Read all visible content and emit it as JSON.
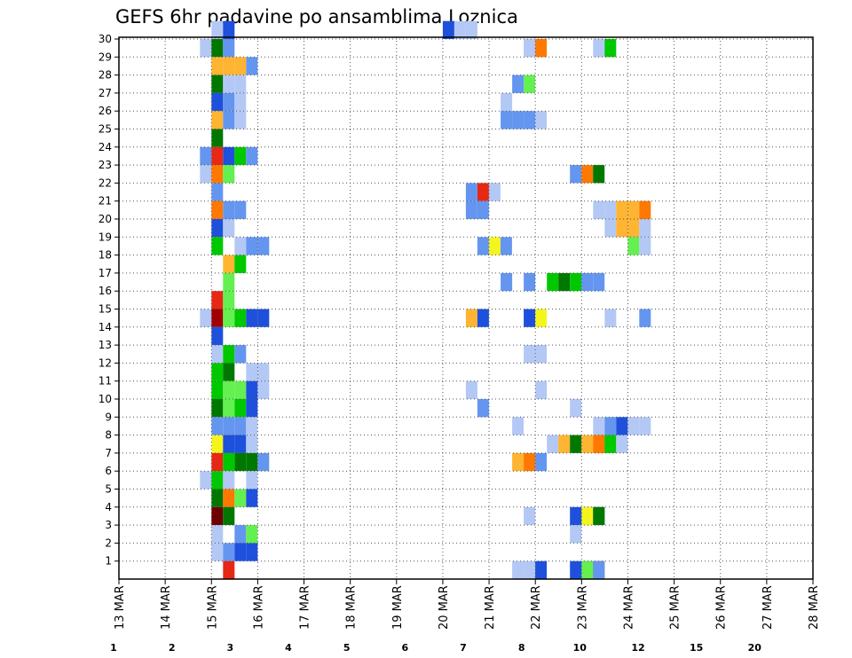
{
  "chart_data": {
    "type": "heatmap",
    "title": "GEFS 6hr padavine po ansamblima Loznica",
    "xlabel": "",
    "ylabel": "",
    "x_tick_labels": [
      "13 MAR",
      "14 MAR",
      "15 MAR",
      "16 MAR",
      "17 MAR",
      "18 MAR",
      "19 MAR",
      "20 MAR",
      "21 MAR",
      "22 MAR",
      "23 MAR",
      "24 MAR",
      "25 MAR",
      "26 MAR",
      "27 MAR",
      "28 MAR"
    ],
    "y_tick_labels": [
      "1",
      "2",
      "3",
      "4",
      "5",
      "6",
      "7",
      "8",
      "9",
      "10",
      "11",
      "12",
      "13",
      "14",
      "15",
      "16",
      "17",
      "18",
      "19",
      "20",
      "21",
      "22",
      "23",
      "24",
      "25",
      "26",
      "27",
      "28",
      "29",
      "30"
    ],
    "grid": true,
    "legend": {
      "placement": "bottom",
      "tick_labels": [
        "1",
        "2",
        "3",
        "4",
        "5",
        "6",
        "7",
        "8",
        "10",
        "12",
        "15",
        "20"
      ],
      "colors": [
        "#b4c8f5",
        "#6496f0",
        "#1e50dc",
        "#64f050",
        "#00c800",
        "#007800",
        "#f5f51e",
        "#ffb432",
        "#ff7800",
        "#e62814",
        "#a00000",
        "#6e0000"
      ]
    },
    "note_value_code": "cell value is color class: 1=light blue ... 12=darkest red",
    "cells": [
      {
        "day": "15 MAR",
        "member": 30,
        "v": 1
      },
      {
        "day": "15 MAR",
        "member": 30,
        "v": 3,
        "o": 1
      },
      {
        "day": "15 MAR",
        "member": 29,
        "v": 1,
        "o": -1
      },
      {
        "day": "15 MAR",
        "member": 29,
        "v": 6
      },
      {
        "day": "15 MAR",
        "member": 29,
        "v": 2,
        "o": 1
      },
      {
        "day": "15 MAR",
        "member": 28,
        "v": 8
      },
      {
        "day": "15 MAR",
        "member": 28,
        "v": 8,
        "o": 1
      },
      {
        "day": "15 MAR",
        "member": 28,
        "v": 8,
        "o": 2
      },
      {
        "day": "15 MAR",
        "member": 28,
        "v": 2,
        "o": 3
      },
      {
        "day": "15 MAR",
        "member": 27,
        "v": 6
      },
      {
        "day": "15 MAR",
        "member": 27,
        "v": 1,
        "o": 1
      },
      {
        "day": "15 MAR",
        "member": 27,
        "v": 1,
        "o": 2
      },
      {
        "day": "15 MAR",
        "member": 26,
        "v": 3
      },
      {
        "day": "15 MAR",
        "member": 26,
        "v": 2,
        "o": 1
      },
      {
        "day": "15 MAR",
        "member": 26,
        "v": 1,
        "o": 2
      },
      {
        "day": "15 MAR",
        "member": 25,
        "v": 8
      },
      {
        "day": "15 MAR",
        "member": 25,
        "v": 2,
        "o": 1
      },
      {
        "day": "15 MAR",
        "member": 25,
        "v": 1,
        "o": 2
      },
      {
        "day": "15 MAR",
        "member": 24,
        "v": 6
      },
      {
        "day": "15 MAR",
        "member": 23,
        "v": 2,
        "o": -1
      },
      {
        "day": "15 MAR",
        "member": 23,
        "v": 10
      },
      {
        "day": "15 MAR",
        "member": 23,
        "v": 3,
        "o": 1
      },
      {
        "day": "15 MAR",
        "member": 23,
        "v": 5,
        "o": 2
      },
      {
        "day": "15 MAR",
        "member": 23,
        "v": 2,
        "o": 3
      },
      {
        "day": "15 MAR",
        "member": 22,
        "v": 1,
        "o": -1
      },
      {
        "day": "15 MAR",
        "member": 22,
        "v": 9
      },
      {
        "day": "15 MAR",
        "member": 22,
        "v": 4,
        "o": 1
      },
      {
        "day": "15 MAR",
        "member": 21,
        "v": 2
      },
      {
        "day": "15 MAR",
        "member": 20,
        "v": 9
      },
      {
        "day": "15 MAR",
        "member": 20,
        "v": 2,
        "o": 1
      },
      {
        "day": "15 MAR",
        "member": 20,
        "v": 2,
        "o": 2
      },
      {
        "day": "15 MAR",
        "member": 19,
        "v": 3
      },
      {
        "day": "15 MAR",
        "member": 19,
        "v": 1,
        "o": 1
      },
      {
        "day": "15 MAR",
        "member": 18,
        "v": 5
      },
      {
        "day": "15 MAR",
        "member": 18,
        "v": 1,
        "o": 2
      },
      {
        "day": "15 MAR",
        "member": 18,
        "v": 2,
        "o": 3
      },
      {
        "day": "15 MAR",
        "member": 18,
        "v": 2,
        "o": 4
      },
      {
        "day": "15 MAR",
        "member": 17,
        "v": 8,
        "o": 1
      },
      {
        "day": "15 MAR",
        "member": 17,
        "v": 5,
        "o": 2
      },
      {
        "day": "15 MAR",
        "member": 16,
        "v": 4,
        "o": 1
      },
      {
        "day": "15 MAR",
        "member": 15,
        "v": 10
      },
      {
        "day": "15 MAR",
        "member": 15,
        "v": 4,
        "o": 1
      },
      {
        "day": "15 MAR",
        "member": 14,
        "v": 1,
        "o": -1
      },
      {
        "day": "15 MAR",
        "member": 14,
        "v": 11
      },
      {
        "day": "15 MAR",
        "member": 14,
        "v": 4,
        "o": 1
      },
      {
        "day": "15 MAR",
        "member": 14,
        "v": 5,
        "o": 2
      },
      {
        "day": "15 MAR",
        "member": 14,
        "v": 3,
        "o": 3
      },
      {
        "day": "15 MAR",
        "member": 14,
        "v": 3,
        "o": 4
      },
      {
        "day": "15 MAR",
        "member": 13,
        "v": 3
      },
      {
        "day": "15 MAR",
        "member": 12,
        "v": 1
      },
      {
        "day": "15 MAR",
        "member": 12,
        "v": 5,
        "o": 1
      },
      {
        "day": "15 MAR",
        "member": 12,
        "v": 2,
        "o": 2
      },
      {
        "day": "15 MAR",
        "member": 11,
        "v": 5
      },
      {
        "day": "15 MAR",
        "member": 11,
        "v": 6,
        "o": 1
      },
      {
        "day": "15 MAR",
        "member": 11,
        "v": 1,
        "o": 3
      },
      {
        "day": "15 MAR",
        "member": 11,
        "v": 1,
        "o": 4
      },
      {
        "day": "15 MAR",
        "member": 10,
        "v": 5
      },
      {
        "day": "15 MAR",
        "member": 10,
        "v": 4,
        "o": 1
      },
      {
        "day": "15 MAR",
        "member": 10,
        "v": 4,
        "o": 2
      },
      {
        "day": "15 MAR",
        "member": 10,
        "v": 3,
        "o": 3
      },
      {
        "day": "15 MAR",
        "member": 10,
        "v": 1,
        "o": 4
      },
      {
        "day": "15 MAR",
        "member": 9,
        "v": 6
      },
      {
        "day": "15 MAR",
        "member": 9,
        "v": 4,
        "o": 1
      },
      {
        "day": "15 MAR",
        "member": 9,
        "v": 5,
        "o": 2
      },
      {
        "day": "15 MAR",
        "member": 9,
        "v": 3,
        "o": 3
      },
      {
        "day": "15 MAR",
        "member": 8,
        "v": 2
      },
      {
        "day": "15 MAR",
        "member": 8,
        "v": 2,
        "o": 1
      },
      {
        "day": "15 MAR",
        "member": 8,
        "v": 2,
        "o": 2
      },
      {
        "day": "15 MAR",
        "member": 8,
        "v": 1,
        "o": 3
      },
      {
        "day": "15 MAR",
        "member": 7,
        "v": 7
      },
      {
        "day": "15 MAR",
        "member": 7,
        "v": 3,
        "o": 1
      },
      {
        "day": "15 MAR",
        "member": 7,
        "v": 3,
        "o": 2
      },
      {
        "day": "15 MAR",
        "member": 7,
        "v": 1,
        "o": 3
      },
      {
        "day": "15 MAR",
        "member": 6,
        "v": 10
      },
      {
        "day": "15 MAR",
        "member": 6,
        "v": 5,
        "o": 1
      },
      {
        "day": "15 MAR",
        "member": 6,
        "v": 6,
        "o": 2
      },
      {
        "day": "15 MAR",
        "member": 6,
        "v": 6,
        "o": 3
      },
      {
        "day": "15 MAR",
        "member": 6,
        "v": 2,
        "o": 4
      },
      {
        "day": "15 MAR",
        "member": 5,
        "v": 1,
        "o": -1
      },
      {
        "day": "15 MAR",
        "member": 5,
        "v": 5
      },
      {
        "day": "15 MAR",
        "member": 5,
        "v": 1,
        "o": 1
      },
      {
        "day": "15 MAR",
        "member": 5,
        "v": 1,
        "o": 3
      },
      {
        "day": "15 MAR",
        "member": 4,
        "v": 6
      },
      {
        "day": "15 MAR",
        "member": 4,
        "v": 9,
        "o": 1
      },
      {
        "day": "15 MAR",
        "member": 4,
        "v": 4,
        "o": 2
      },
      {
        "day": "15 MAR",
        "member": 4,
        "v": 3,
        "o": 3
      },
      {
        "day": "15 MAR",
        "member": 3,
        "v": 12
      },
      {
        "day": "15 MAR",
        "member": 3,
        "v": 6,
        "o": 1
      },
      {
        "day": "15 MAR",
        "member": 2,
        "v": 1
      },
      {
        "day": "15 MAR",
        "member": 2,
        "v": 2,
        "o": 2
      },
      {
        "day": "15 MAR",
        "member": 2,
        "v": 4,
        "o": 3
      },
      {
        "day": "15 MAR",
        "member": 1,
        "v": 1
      },
      {
        "day": "15 MAR",
        "member": 1,
        "v": 2,
        "o": 1
      },
      {
        "day": "15 MAR",
        "member": 1,
        "v": 3,
        "o": 2
      },
      {
        "day": "15 MAR",
        "member": 1,
        "v": 3,
        "o": 3
      },
      {
        "day": "15 MAR",
        "member": 0,
        "v": 10,
        "o": 1
      },
      {
        "day": "20 MAR",
        "member": 30,
        "v": 3
      },
      {
        "day": "20 MAR",
        "member": 30,
        "v": 1,
        "o": 1
      },
      {
        "day": "20 MAR",
        "member": 30,
        "v": 1,
        "o": 2
      },
      {
        "day": "20 MAR",
        "member": 21,
        "v": 2,
        "o": 2
      },
      {
        "day": "20 MAR",
        "member": 21,
        "v": 10,
        "o": 3
      },
      {
        "day": "20 MAR",
        "member": 21,
        "v": 1,
        "o": 4
      },
      {
        "day": "20 MAR",
        "member": 20,
        "v": 2,
        "o": 2
      },
      {
        "day": "20 MAR",
        "member": 20,
        "v": 2,
        "o": 3
      },
      {
        "day": "20 MAR",
        "member": 18,
        "v": 2,
        "o": 3
      },
      {
        "day": "20 MAR",
        "member": 18,
        "v": 7,
        "o": 4
      },
      {
        "day": "20 MAR",
        "member": 18,
        "v": 2,
        "o": 5
      },
      {
        "day": "20 MAR",
        "member": 14,
        "v": 8,
        "o": 2
      },
      {
        "day": "20 MAR",
        "member": 14,
        "v": 3,
        "o": 3
      },
      {
        "day": "20 MAR",
        "member": 10,
        "v": 1,
        "o": 2
      },
      {
        "day": "20 MAR",
        "member": 9,
        "v": 2,
        "o": 3
      },
      {
        "day": "21 MAR",
        "member": 29,
        "v": 1,
        "o": 3
      },
      {
        "day": "21 MAR",
        "member": 29,
        "v": 9,
        "o": 4
      },
      {
        "day": "21 MAR",
        "member": 27,
        "v": 2,
        "o": 2
      },
      {
        "day": "21 MAR",
        "member": 27,
        "v": 4,
        "o": 3
      },
      {
        "day": "21 MAR",
        "member": 26,
        "v": 1,
        "o": 1
      },
      {
        "day": "21 MAR",
        "member": 25,
        "v": 2,
        "o": 1
      },
      {
        "day": "21 MAR",
        "member": 25,
        "v": 2,
        "o": 2
      },
      {
        "day": "21 MAR",
        "member": 25,
        "v": 2,
        "o": 3
      },
      {
        "day": "21 MAR",
        "member": 25,
        "v": 1,
        "o": 4
      },
      {
        "day": "21 MAR",
        "member": 16,
        "v": 2,
        "o": 1
      },
      {
        "day": "21 MAR",
        "member": 16,
        "v": 2,
        "o": 3
      },
      {
        "day": "21 MAR",
        "member": 14,
        "v": 3,
        "o": 3
      },
      {
        "day": "21 MAR",
        "member": 14,
        "v": 7,
        "o": 4
      },
      {
        "day": "21 MAR",
        "member": 12,
        "v": 1,
        "o": 3
      },
      {
        "day": "21 MAR",
        "member": 12,
        "v": 1,
        "o": 4
      },
      {
        "day": "21 MAR",
        "member": 8,
        "v": 1,
        "o": 2
      },
      {
        "day": "21 MAR",
        "member": 6,
        "v": 8,
        "o": 2
      },
      {
        "day": "21 MAR",
        "member": 6,
        "v": 9,
        "o": 3
      },
      {
        "day": "21 MAR",
        "member": 6,
        "v": 2,
        "o": 4
      },
      {
        "day": "21 MAR",
        "member": 3,
        "v": 1,
        "o": 3
      },
      {
        "day": "21 MAR",
        "member": 0,
        "v": 1,
        "o": 2
      },
      {
        "day": "21 MAR",
        "member": 0,
        "v": 1,
        "o": 3
      },
      {
        "day": "21 MAR",
        "member": 0,
        "v": 3,
        "o": 4
      },
      {
        "day": "22 MAR",
        "member": 22,
        "v": 2,
        "o": 3
      },
      {
        "day": "22 MAR",
        "member": 22,
        "v": 9,
        "o": 4
      },
      {
        "day": "22 MAR",
        "member": 22,
        "v": 6,
        "o": 5
      },
      {
        "day": "22 MAR",
        "member": 16,
        "v": 5,
        "o": 1
      },
      {
        "day": "22 MAR",
        "member": 16,
        "v": 6,
        "o": 2
      },
      {
        "day": "22 MAR",
        "member": 16,
        "v": 5,
        "o": 3
      },
      {
        "day": "22 MAR",
        "member": 16,
        "v": 2,
        "o": 4
      },
      {
        "day": "22 MAR",
        "member": 16,
        "v": 2,
        "o": 5
      },
      {
        "day": "22 MAR",
        "member": 10,
        "v": 1,
        "o": 0
      },
      {
        "day": "22 MAR",
        "member": 9,
        "v": 1,
        "o": 3
      },
      {
        "day": "22 MAR",
        "member": 7,
        "v": 1,
        "o": 1
      },
      {
        "day": "22 MAR",
        "member": 7,
        "v": 8,
        "o": 2
      },
      {
        "day": "22 MAR",
        "member": 7,
        "v": 6,
        "o": 3
      },
      {
        "day": "22 MAR",
        "member": 7,
        "v": 8,
        "o": 4
      },
      {
        "day": "22 MAR",
        "member": 7,
        "v": 8,
        "o": 5
      },
      {
        "day": "22 MAR",
        "member": 3,
        "v": 3,
        "o": 3
      },
      {
        "day": "22 MAR",
        "member": 3,
        "v": 6,
        "o": 4
      },
      {
        "day": "22 MAR",
        "member": 3,
        "v": 3,
        "o": 5
      },
      {
        "day": "22 MAR",
        "member": 2,
        "v": 1,
        "o": 3
      },
      {
        "day": "22 MAR",
        "member": 0,
        "v": 3,
        "o": 3
      },
      {
        "day": "22 MAR",
        "member": 0,
        "v": 3,
        "o": 4
      },
      {
        "day": "22 MAR",
        "member": 0,
        "v": 10,
        "o": 5
      },
      {
        "day": "23 MAR",
        "member": 29,
        "v": 1,
        "o": 1
      },
      {
        "day": "23 MAR",
        "member": 29,
        "v": 5,
        "o": 2
      },
      {
        "day": "23 MAR",
        "member": 20,
        "v": 1,
        "o": 1
      },
      {
        "day": "23 MAR",
        "member": 20,
        "v": 1,
        "o": 2
      },
      {
        "day": "23 MAR",
        "member": 20,
        "v": 8,
        "o": 3
      },
      {
        "day": "23 MAR",
        "member": 20,
        "v": 8,
        "o": 4
      },
      {
        "day": "23 MAR",
        "member": 20,
        "v": 9,
        "o": 5
      },
      {
        "day": "23 MAR",
        "member": 19,
        "v": 1,
        "o": 2
      },
      {
        "day": "23 MAR",
        "member": 19,
        "v": 8,
        "o": 3
      },
      {
        "day": "23 MAR",
        "member": 19,
        "v": 8,
        "o": 4
      },
      {
        "day": "23 MAR",
        "member": 19,
        "v": 1,
        "o": 5
      },
      {
        "day": "23 MAR",
        "member": 18,
        "v": 4,
        "o": 4
      },
      {
        "day": "23 MAR",
        "member": 18,
        "v": 1,
        "o": 5
      },
      {
        "day": "23 MAR",
        "member": 14,
        "v": 1,
        "o": 2
      },
      {
        "day": "23 MAR",
        "member": 14,
        "v": 2,
        "o": 5
      },
      {
        "day": "23 MAR",
        "member": 8,
        "v": 1,
        "o": 1
      },
      {
        "day": "23 MAR",
        "member": 8,
        "v": 2,
        "o": 2
      },
      {
        "day": "23 MAR",
        "member": 8,
        "v": 3,
        "o": 3
      },
      {
        "day": "23 MAR",
        "member": 8,
        "v": 1,
        "o": 4
      },
      {
        "day": "23 MAR",
        "member": 8,
        "v": 1,
        "o": 5
      },
      {
        "day": "23 MAR",
        "member": 7,
        "v": 9,
        "o": 1
      },
      {
        "day": "23 MAR",
        "member": 7,
        "v": 5,
        "o": 2
      },
      {
        "day": "23 MAR",
        "member": 7,
        "v": 1,
        "o": 3
      },
      {
        "day": "23 MAR",
        "member": 3,
        "v": 7,
        "o": 0
      },
      {
        "day": "23 MAR",
        "member": 3,
        "v": 6,
        "o": 1
      },
      {
        "day": "23 MAR",
        "member": 0,
        "v": 4,
        "o": 0
      },
      {
        "day": "23 MAR",
        "member": 0,
        "v": 2,
        "o": 1
      }
    ]
  }
}
